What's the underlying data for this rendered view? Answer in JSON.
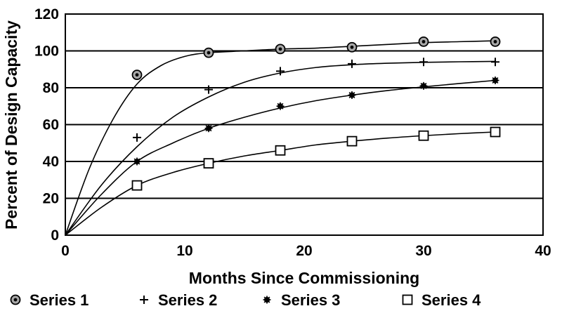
{
  "chart_data": {
    "type": "scatter",
    "title": "",
    "xlabel": "Months Since Commissioning",
    "ylabel": "Percent of Design Capacity",
    "xlim": [
      0,
      40
    ],
    "ylim": [
      0,
      120
    ],
    "xticks": [
      0,
      10,
      20,
      30,
      40
    ],
    "yticks": [
      0,
      20,
      40,
      60,
      80,
      100,
      120
    ],
    "grid": "horizontal",
    "legend_position": "bottom",
    "series": [
      {
        "name": "Series 1",
        "marker": "circle-dot",
        "x": [
          6,
          12,
          18,
          24,
          30,
          36
        ],
        "y": [
          87,
          99,
          101,
          102,
          105,
          105
        ],
        "curve_x": [
          0,
          2,
          4,
          6,
          8,
          10,
          12,
          15,
          18,
          21,
          24,
          27,
          30,
          33,
          36
        ],
        "curve_y": [
          0,
          36,
          63,
          82,
          92,
          97,
          99,
          100,
          101,
          101.5,
          102.5,
          103.5,
          104.5,
          105,
          105.5
        ]
      },
      {
        "name": "Series 2",
        "marker": "plus",
        "x": [
          6,
          12,
          18,
          24,
          30,
          36
        ],
        "y": [
          53,
          79,
          89,
          93,
          94,
          94
        ],
        "curve_x": [
          0,
          3,
          6,
          9,
          12,
          15,
          18,
          21,
          24,
          27,
          30,
          33,
          36
        ],
        "curve_y": [
          0,
          27,
          48,
          64,
          75,
          83,
          88,
          91,
          92.5,
          93.3,
          93.8,
          94.1,
          94.3
        ]
      },
      {
        "name": "Series 3",
        "marker": "star",
        "x": [
          6,
          12,
          18,
          24,
          30,
          36
        ],
        "y": [
          40,
          58,
          70,
          76,
          81,
          84
        ],
        "curve_x": [
          0,
          3,
          6,
          9,
          12,
          15,
          18,
          21,
          24,
          27,
          30,
          33,
          36
        ],
        "curve_y": [
          0,
          22,
          40,
          50,
          58,
          64,
          69,
          73,
          76,
          78.5,
          80.5,
          82.3,
          84
        ]
      },
      {
        "name": "Series 4",
        "marker": "square",
        "x": [
          6,
          12,
          18,
          24,
          30,
          36
        ],
        "y": [
          27,
          39,
          46,
          51,
          54,
          56
        ],
        "curve_x": [
          0,
          3,
          6,
          9,
          12,
          15,
          18,
          21,
          24,
          27,
          30,
          33,
          36
        ],
        "curve_y": [
          0,
          15,
          27,
          34,
          39,
          43,
          46,
          49,
          51,
          52.7,
          54,
          55.1,
          56
        ]
      }
    ]
  }
}
